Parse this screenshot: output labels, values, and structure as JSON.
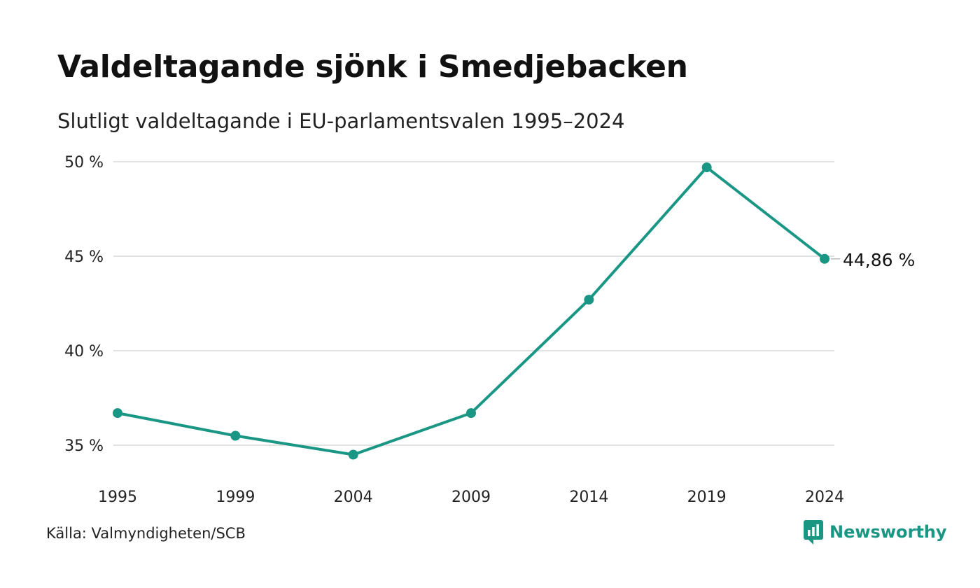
{
  "colors": {
    "accent": "#1a9685",
    "grid": "#e1e1e1",
    "text": "#111111"
  },
  "header": {
    "title": "Valdeltagande sjönk i Smedjebacken",
    "subtitle": "Slutligt valdeltagande i EU-parlamentsvalen 1995–2024"
  },
  "footer": {
    "source": "Källa: Valmyndigheten/SCB",
    "brand": "Newsworthy",
    "brand_icon": "newsworthy-logo-icon"
  },
  "chart_data": {
    "type": "line",
    "categories": [
      "1995",
      "1999",
      "2004",
      "2009",
      "2014",
      "2019",
      "2024"
    ],
    "series": [
      {
        "values": [
          36.7,
          35.5,
          34.5,
          36.7,
          42.7,
          49.7,
          44.86
        ]
      }
    ],
    "ylim": [
      34,
      50
    ],
    "yticks": [
      50,
      45,
      40,
      35
    ],
    "ytick_labels": [
      "50 %",
      "45 %",
      "40 %",
      "35 %"
    ],
    "end_label": "44,86 %",
    "grid": true,
    "legend": "none"
  }
}
